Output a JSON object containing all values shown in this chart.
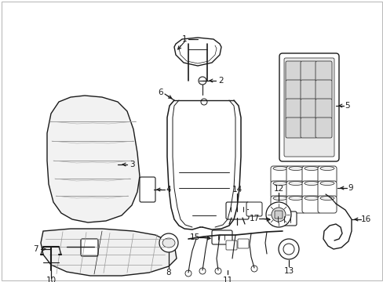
{
  "bg_color": "#ffffff",
  "line_color": "#1a1a1a",
  "lw": 0.9,
  "fig_w": 4.89,
  "fig_h": 3.6,
  "dpi": 100
}
